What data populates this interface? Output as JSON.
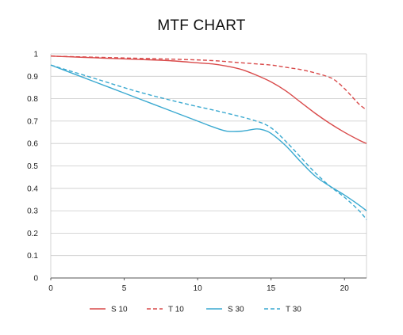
{
  "chart_data": {
    "type": "line",
    "title": "MTF CHART",
    "xlabel": "",
    "ylabel": "",
    "xlim": [
      0,
      21.5
    ],
    "ylim": [
      0,
      1
    ],
    "x_ticks": [
      0,
      5,
      10,
      15,
      20
    ],
    "x_tick_labels": [
      "0",
      "5",
      "10",
      "15",
      "20"
    ],
    "y_ticks": [
      0,
      0.1,
      0.2,
      0.3,
      0.4,
      0.5,
      0.6,
      0.7,
      0.8,
      0.9,
      1
    ],
    "y_tick_labels": [
      "0",
      "0.1",
      "0.2",
      "0.3",
      "0.4",
      "0.5",
      "0.6",
      "0.7",
      "0.8",
      "0.9",
      "1"
    ],
    "grid": "horizontal",
    "legend_position": "bottom",
    "series": [
      {
        "name": "S 10",
        "color": "#d94a4a",
        "dash": "solid",
        "points": [
          [
            0,
            0.99
          ],
          [
            2,
            0.985
          ],
          [
            4,
            0.98
          ],
          [
            6,
            0.975
          ],
          [
            8,
            0.97
          ],
          [
            10,
            0.96
          ],
          [
            11,
            0.955
          ],
          [
            12,
            0.945
          ],
          [
            13,
            0.93
          ],
          [
            14,
            0.905
          ],
          [
            15,
            0.875
          ],
          [
            16,
            0.835
          ],
          [
            17,
            0.785
          ],
          [
            18,
            0.735
          ],
          [
            19,
            0.69
          ],
          [
            20,
            0.65
          ],
          [
            21,
            0.615
          ],
          [
            21.5,
            0.6
          ]
        ]
      },
      {
        "name": "T 10",
        "color": "#d94a4a",
        "dash": "dashed",
        "points": [
          [
            0,
            0.99
          ],
          [
            3,
            0.985
          ],
          [
            6,
            0.98
          ],
          [
            9,
            0.975
          ],
          [
            11,
            0.97
          ],
          [
            13,
            0.96
          ],
          [
            15,
            0.95
          ],
          [
            16,
            0.94
          ],
          [
            17,
            0.93
          ],
          [
            18,
            0.915
          ],
          [
            19,
            0.895
          ],
          [
            19.5,
            0.875
          ],
          [
            20,
            0.845
          ],
          [
            20.5,
            0.81
          ],
          [
            21,
            0.775
          ],
          [
            21.5,
            0.75
          ]
        ]
      },
      {
        "name": "S 30",
        "color": "#3aa9d0",
        "dash": "solid",
        "points": [
          [
            0,
            0.95
          ],
          [
            2,
            0.9
          ],
          [
            4,
            0.85
          ],
          [
            6,
            0.8
          ],
          [
            8,
            0.75
          ],
          [
            10,
            0.7
          ],
          [
            11,
            0.675
          ],
          [
            12,
            0.655
          ],
          [
            13,
            0.655
          ],
          [
            14,
            0.665
          ],
          [
            14.5,
            0.66
          ],
          [
            15,
            0.645
          ],
          [
            16,
            0.59
          ],
          [
            17,
            0.52
          ],
          [
            18,
            0.455
          ],
          [
            19,
            0.41
          ],
          [
            20,
            0.37
          ],
          [
            21,
            0.325
          ],
          [
            21.5,
            0.3
          ]
        ]
      },
      {
        "name": "T 30",
        "color": "#3aa9d0",
        "dash": "dashed",
        "points": [
          [
            0,
            0.95
          ],
          [
            3,
            0.89
          ],
          [
            6,
            0.83
          ],
          [
            9,
            0.78
          ],
          [
            12,
            0.735
          ],
          [
            14,
            0.7
          ],
          [
            15,
            0.67
          ],
          [
            16,
            0.61
          ],
          [
            17,
            0.54
          ],
          [
            18,
            0.47
          ],
          [
            19,
            0.41
          ],
          [
            20,
            0.36
          ],
          [
            21,
            0.3
          ],
          [
            21.5,
            0.26
          ]
        ]
      }
    ]
  }
}
